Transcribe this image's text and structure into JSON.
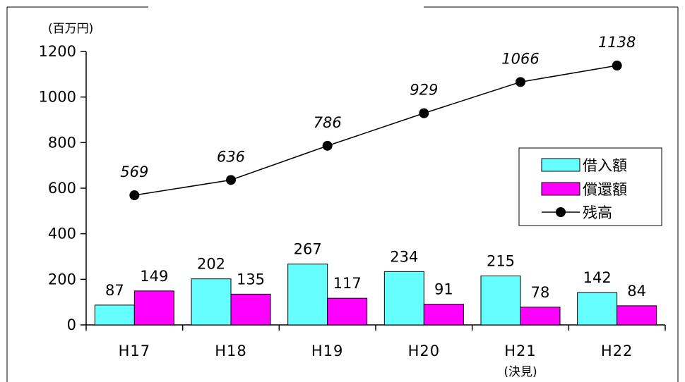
{
  "colors": {
    "borrow": "#66ffff",
    "repay": "#ff00ff",
    "balance": "#000000",
    "axis": "#000000"
  },
  "chart_data": {
    "type": "bar",
    "unit_label": "(百万円)",
    "categories": [
      "H17",
      "H18",
      "H19",
      "H20",
      "H21",
      "H22"
    ],
    "category_sublabels": [
      "",
      "",
      "",
      "",
      "(決見)",
      ""
    ],
    "ylim": [
      0,
      1200
    ],
    "yticks": [
      0,
      200,
      400,
      600,
      800,
      1000,
      1200
    ],
    "grid": false,
    "legend_position": "right",
    "series": [
      {
        "name": "借入額",
        "type": "bar",
        "color": "#66ffff",
        "values": [
          87,
          202,
          267,
          234,
          215,
          142
        ]
      },
      {
        "name": "償還額",
        "type": "bar",
        "color": "#ff00ff",
        "values": [
          149,
          135,
          117,
          91,
          78,
          84
        ]
      },
      {
        "name": "残高",
        "type": "line",
        "color": "#000000",
        "values": [
          569,
          636,
          786,
          929,
          1066,
          1138
        ]
      }
    ]
  }
}
